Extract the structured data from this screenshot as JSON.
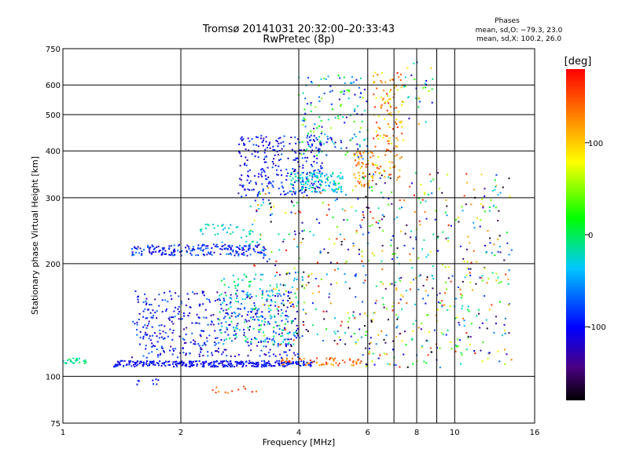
{
  "chart_data": {
    "type": "scatter",
    "title_line1": "Tromsø 20141031 20:32:00–20:33:43",
    "title_line2": "RwPretec (8p)",
    "xlabel": "Frequency [MHz]",
    "ylabel": "Stationary phase Virtual Height [km]",
    "x_scale": "log",
    "y_scale": "log",
    "xlim": [
      1,
      16
    ],
    "ylim": [
      75,
      750
    ],
    "x_ticks": [
      1,
      2,
      4,
      6,
      8,
      10,
      16
    ],
    "x_gridlines": [
      2,
      4,
      6,
      7,
      8,
      9,
      10
    ],
    "y_ticks": [
      75,
      100,
      200,
      300,
      400,
      500,
      600,
      750
    ],
    "y_gridlines": [
      100,
      200,
      300,
      400,
      500,
      600
    ],
    "grid": true,
    "stats": {
      "heading": "Phases",
      "line_o": "mean, sd,O: −79.3, 23.0",
      "line_x": "mean, sd,X: 100.2, 26.0"
    },
    "colorbar": {
      "label": "[deg]",
      "range": [
        -180,
        180
      ],
      "ticks": [
        100,
        0,
        -100
      ]
    },
    "clusters": [
      {
        "x": [
          1.0,
          1.15
        ],
        "y": [
          108,
          112
        ],
        "phase": [
          -30,
          10
        ],
        "n": 25
      },
      {
        "x": [
          1.35,
          4.4
        ],
        "y": [
          106,
          110
        ],
        "phase": [
          -120,
          -80
        ],
        "n": 320
      },
      {
        "x": [
          3.6,
          5.8
        ],
        "y": [
          107,
          112
        ],
        "phase": [
          110,
          170
        ],
        "n": 60
      },
      {
        "x": [
          1.5,
          4.0
        ],
        "y": [
          112,
          170
        ],
        "phase": [
          -140,
          -60
        ],
        "n": 450
      },
      {
        "x": [
          2.5,
          4.0
        ],
        "y": [
          120,
          190
        ],
        "phase": [
          -60,
          10
        ],
        "n": 150
      },
      {
        "x": [
          1.5,
          3.3
        ],
        "y": [
          210,
          225
        ],
        "phase": [
          -130,
          -60
        ],
        "n": 200
      },
      {
        "x": [
          2.2,
          3.2
        ],
        "y": [
          225,
          255
        ],
        "phase": [
          -50,
          0
        ],
        "n": 40
      },
      {
        "x": [
          2.8,
          4.6
        ],
        "y": [
          300,
          440
        ],
        "phase": [
          -130,
          -70
        ],
        "n": 260
      },
      {
        "x": [
          3.8,
          5.2
        ],
        "y": [
          310,
          350
        ],
        "phase": [
          -60,
          0
        ],
        "n": 130
      },
      {
        "x": [
          4.0,
          6.0
        ],
        "y": [
          380,
          640
        ],
        "phase": [
          -140,
          60
        ],
        "n": 160
      },
      {
        "x": [
          5.5,
          6.2
        ],
        "y": [
          320,
          400
        ],
        "phase": [
          90,
          170
        ],
        "n": 60
      },
      {
        "x": [
          6.2,
          7.4
        ],
        "y": [
          340,
          650
        ],
        "phase": [
          60,
          170
        ],
        "n": 130
      },
      {
        "x": [
          3.0,
          6.0
        ],
        "y": [
          120,
          320
        ],
        "phase": [
          -180,
          180
        ],
        "n": 260
      },
      {
        "x": [
          5.8,
          14.0
        ],
        "y": [
          105,
          350
        ],
        "phase": [
          -180,
          180
        ],
        "n": 460
      },
      {
        "x": [
          7.4,
          8.8
        ],
        "y": [
          450,
          700
        ],
        "phase": [
          -140,
          120
        ],
        "n": 30
      },
      {
        "x": [
          2.4,
          3.2
        ],
        "y": [
          90,
          94
        ],
        "phase": [
          120,
          170
        ],
        "n": 12
      },
      {
        "x": [
          1.5,
          1.8
        ],
        "y": [
          95,
          99
        ],
        "phase": [
          -110,
          -80
        ],
        "n": 8
      }
    ]
  }
}
